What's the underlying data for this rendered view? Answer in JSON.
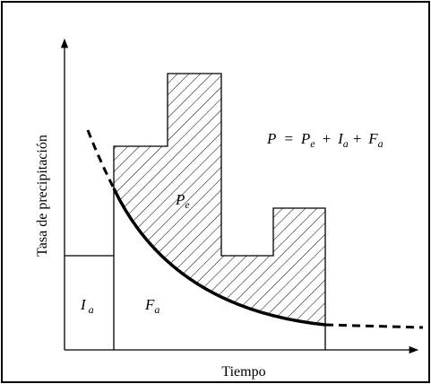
{
  "axes": {
    "y_label": "Tasa de precipitación",
    "x_label": "Tiempo"
  },
  "equation": {
    "lhs": "P",
    "eq": "=",
    "terms": [
      {
        "main": "P",
        "sub": "e"
      },
      {
        "main": "I",
        "sub": "a"
      },
      {
        "main": "F",
        "sub": "a"
      }
    ],
    "plus": "+"
  },
  "regions": {
    "initial_abstraction": {
      "main": "I",
      "sub": "a"
    },
    "infiltration": {
      "main": "F",
      "sub": "a"
    },
    "excess": {
      "main": "P",
      "sub": "e"
    }
  }
}
